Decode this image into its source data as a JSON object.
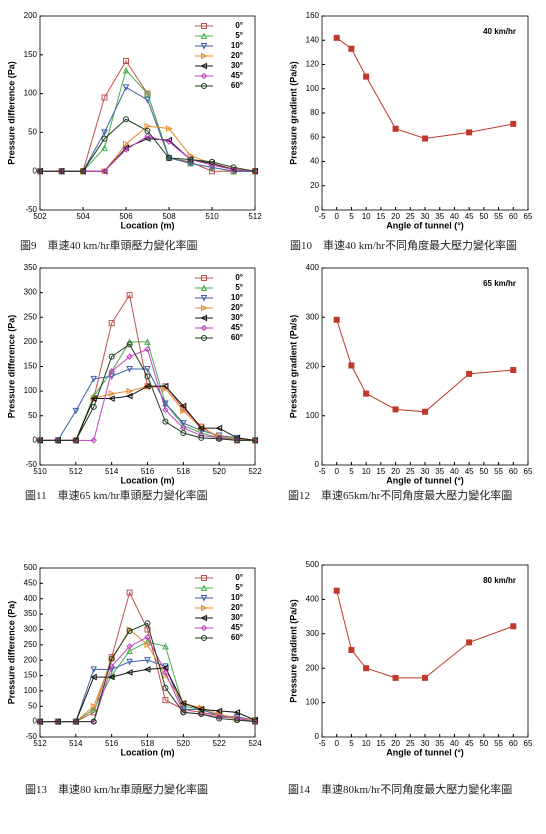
{
  "chart_data": [
    {
      "type": "line",
      "xlabel": "Location (m)",
      "ylabel": "Pressure difference (Pa)",
      "caption": "圖9　車速40 km/hr車頭壓力變化率圖",
      "x": [
        502,
        503,
        504,
        505,
        506,
        507,
        508,
        509,
        510,
        511,
        512
      ],
      "xlim": [
        502,
        512
      ],
      "xticks": [
        502,
        504,
        506,
        508,
        510,
        512
      ],
      "ylim": [
        -50,
        200
      ],
      "yticks": [
        -50,
        0,
        50,
        100,
        150,
        200
      ],
      "series": [
        {
          "name": "0°",
          "color": "#c0504d",
          "marker": "square",
          "values": [
            0,
            0,
            0,
            95,
            142,
            100,
            17,
            12,
            0,
            0,
            0
          ]
        },
        {
          "name": "5°",
          "color": "#4bae4f",
          "marker": "triangle-up",
          "values": [
            0,
            0,
            0,
            30,
            130,
            100,
            18,
            10,
            5,
            0,
            0
          ]
        },
        {
          "name": "10°",
          "color": "#3c5fa8",
          "marker": "triangle-down",
          "values": [
            0,
            0,
            0,
            50,
            108,
            92,
            17,
            10,
            5,
            0,
            0
          ]
        },
        {
          "name": "20°",
          "color": "#e8892e",
          "marker": "triangle-right",
          "values": [
            0,
            0,
            0,
            0,
            35,
            58,
            55,
            20,
            10,
            3,
            0
          ]
        },
        {
          "name": "30°",
          "color": "#111111",
          "marker": "triangle-left",
          "values": [
            0,
            0,
            0,
            0,
            30,
            42,
            40,
            15,
            10,
            2,
            0
          ]
        },
        {
          "name": "45°",
          "color": "#c040c0",
          "marker": "diamond",
          "values": [
            0,
            0,
            0,
            0,
            28,
            45,
            38,
            15,
            8,
            2,
            0
          ]
        },
        {
          "name": "60°",
          "color": "#1e3d1e",
          "marker": "circle",
          "values": [
            0,
            0,
            0,
            42,
            67,
            52,
            17,
            15,
            12,
            5,
            0
          ]
        }
      ]
    },
    {
      "type": "line",
      "xlabel": "Angle of tunnel (°)",
      "ylabel": "Pressure gradient (Pa/s)",
      "annotation": "40 km/hr",
      "caption": "圖10　車速40 km/hr不同角度最大壓力變化率圖",
      "x": [
        0,
        5,
        10,
        20,
        30,
        45,
        60
      ],
      "values": [
        142,
        133,
        110,
        67,
        59,
        64,
        71
      ],
      "color": "#c0392b",
      "marker": "square",
      "xlim": [
        -5,
        65
      ],
      "xticks": [
        -5,
        0,
        5,
        10,
        15,
        20,
        25,
        30,
        35,
        40,
        45,
        50,
        55,
        60,
        65
      ],
      "ylim": [
        0,
        160
      ],
      "yticks": [
        0,
        20,
        40,
        60,
        80,
        100,
        120,
        140,
        160
      ]
    },
    {
      "type": "line",
      "xlabel": "Location (m)",
      "ylabel": "Pressure difference (Pa)",
      "caption": "圖11　車速65 km/hr車頭壓力變化率圖",
      "x": [
        510,
        511,
        512,
        513,
        514,
        515,
        516,
        517,
        518,
        519,
        520,
        521,
        522
      ],
      "xlim": [
        510,
        522
      ],
      "xticks": [
        510,
        512,
        514,
        516,
        518,
        520,
        522
      ],
      "ylim": [
        -50,
        350
      ],
      "yticks": [
        -50,
        0,
        50,
        100,
        150,
        200,
        250,
        300,
        350
      ],
      "series": [
        {
          "name": "0°",
          "color": "#c0504d",
          "marker": "square",
          "values": [
            0,
            0,
            0,
            85,
            238,
            295,
            110,
            110,
            65,
            28,
            5,
            0,
            0
          ]
        },
        {
          "name": "5°",
          "color": "#4bae4f",
          "marker": "triangle-up",
          "values": [
            0,
            0,
            0,
            90,
            140,
            200,
            200,
            75,
            30,
            15,
            5,
            3,
            0
          ]
        },
        {
          "name": "10°",
          "color": "#3c5fa8",
          "marker": "triangle-down",
          "values": [
            0,
            0,
            60,
            125,
            130,
            145,
            145,
            75,
            35,
            20,
            10,
            5,
            0
          ]
        },
        {
          "name": "20°",
          "color": "#e8892e",
          "marker": "triangle-right",
          "values": [
            0,
            0,
            0,
            85,
            95,
            100,
            110,
            105,
            60,
            25,
            8,
            3,
            0
          ]
        },
        {
          "name": "30°",
          "color": "#111111",
          "marker": "triangle-left",
          "values": [
            0,
            0,
            0,
            85,
            85,
            90,
            110,
            110,
            70,
            25,
            25,
            5,
            0
          ]
        },
        {
          "name": "45°",
          "color": "#c040c0",
          "marker": "diamond",
          "values": [
            0,
            0,
            0,
            0,
            140,
            170,
            185,
            62,
            25,
            10,
            5,
            0,
            0
          ]
        },
        {
          "name": "60°",
          "color": "#1e3d1e",
          "marker": "circle",
          "values": [
            0,
            0,
            0,
            68,
            170,
            195,
            130,
            38,
            15,
            5,
            3,
            0,
            0
          ]
        }
      ]
    },
    {
      "type": "line",
      "xlabel": "Angle of tunnel (°)",
      "ylabel": "Pressure gradient (Pa/s)",
      "annotation": "65 km/hr",
      "caption": "圖12　車速65km/hr不同角度最大壓力變化率圖",
      "x": [
        0,
        5,
        10,
        20,
        30,
        45,
        60
      ],
      "values": [
        295,
        202,
        145,
        113,
        108,
        185,
        193
      ],
      "color": "#c0392b",
      "marker": "square",
      "xlim": [
        -5,
        65
      ],
      "xticks": [
        -5,
        0,
        5,
        10,
        15,
        20,
        25,
        30,
        35,
        40,
        45,
        50,
        55,
        60,
        65
      ],
      "ylim": [
        0,
        400
      ],
      "yticks": [
        0,
        100,
        200,
        300,
        400
      ]
    },
    {
      "type": "line",
      "xlabel": "Location (m)",
      "ylabel": "Pressure difference (Pa)",
      "caption": "圖13　車速80 km/hr車頭壓力變化率圖",
      "x": [
        512,
        513,
        514,
        515,
        516,
        517,
        518,
        519,
        520,
        521,
        522,
        523,
        524
      ],
      "xlim": [
        512,
        524
      ],
      "xticks": [
        512,
        514,
        516,
        518,
        520,
        522,
        524
      ],
      "ylim": [
        -50,
        500
      ],
      "yticks": [
        -50,
        0,
        50,
        100,
        150,
        200,
        250,
        300,
        350,
        400,
        450,
        500
      ],
      "series": [
        {
          "name": "0°",
          "color": "#c0504d",
          "marker": "square",
          "values": [
            0,
            0,
            0,
            30,
            210,
            420,
            300,
            70,
            40,
            30,
            20,
            10,
            0
          ]
        },
        {
          "name": "5°",
          "color": "#4bae4f",
          "marker": "triangle-up",
          "values": [
            0,
            0,
            0,
            40,
            150,
            230,
            260,
            245,
            50,
            40,
            20,
            10,
            5
          ]
        },
        {
          "name": "10°",
          "color": "#3c5fa8",
          "marker": "triangle-down",
          "values": [
            0,
            0,
            0,
            170,
            170,
            195,
            200,
            180,
            40,
            40,
            20,
            15,
            5
          ]
        },
        {
          "name": "20°",
          "color": "#e8892e",
          "marker": "triangle-right",
          "values": [
            0,
            0,
            0,
            50,
            200,
            300,
            250,
            150,
            60,
            45,
            25,
            10,
            5
          ]
        },
        {
          "name": "30°",
          "color": "#111111",
          "marker": "triangle-left",
          "values": [
            0,
            0,
            0,
            145,
            145,
            160,
            170,
            175,
            60,
            40,
            35,
            30,
            5
          ]
        },
        {
          "name": "45°",
          "color": "#c040c0",
          "marker": "diamond",
          "values": [
            0,
            0,
            0,
            0,
            180,
            245,
            275,
            160,
            30,
            25,
            15,
            10,
            0
          ]
        },
        {
          "name": "60°",
          "color": "#1e3d1e",
          "marker": "circle",
          "values": [
            0,
            0,
            0,
            0,
            205,
            295,
            320,
            110,
            30,
            25,
            10,
            5,
            0
          ]
        }
      ]
    },
    {
      "type": "line",
      "xlabel": "Angle of tunnel (°)",
      "ylabel": "Pressure gradient (Pa/s)",
      "annotation": "80 km/hr",
      "caption": "圖14　車速80km/hr不同角度最大壓力變化率圖",
      "x": [
        0,
        5,
        10,
        20,
        30,
        45,
        60
      ],
      "values": [
        425,
        253,
        200,
        172,
        172,
        275,
        322
      ],
      "color": "#c0392b",
      "marker": "square",
      "xlim": [
        -5,
        65
      ],
      "xticks": [
        -5,
        0,
        5,
        10,
        15,
        20,
        25,
        30,
        35,
        40,
        45,
        50,
        55,
        60,
        65
      ],
      "ylim": [
        0,
        500
      ],
      "yticks": [
        0,
        100,
        200,
        300,
        400,
        500
      ]
    }
  ]
}
